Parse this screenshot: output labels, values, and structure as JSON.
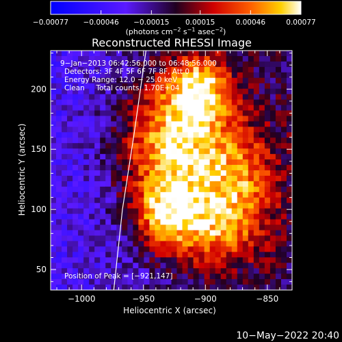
{
  "chart_data": {
    "type": "heatmap",
    "title": "Reconstructed RHESSI Image",
    "xlabel": "Heliocentric X (arcsec)",
    "ylabel": "Heliocentric Y (arcsec)",
    "xlim": [
      -1025,
      -830
    ],
    "ylim": [
      33,
      232
    ],
    "x_ticks": [
      -1000,
      -950,
      -900,
      -850
    ],
    "x_tick_labels": [
      "−1000",
      "−950",
      "−900",
      "−850"
    ],
    "y_ticks": [
      50,
      100,
      150,
      200
    ],
    "y_tick_labels": [
      "50",
      "100",
      "150",
      "200"
    ],
    "colorbar": {
      "ticks": [
        -0.00077,
        -0.00046,
        -0.00015,
        0.00015,
        0.00046,
        0.00077
      ],
      "tick_labels": [
        "−0.00077",
        "−0.00046",
        "−0.00015",
        "0.00015",
        "0.00046",
        "0.00077"
      ],
      "range": [
        -0.00077,
        0.00077
      ],
      "units_prefix": "(photons cm",
      "units_sup1": "−2",
      "units_mid": " s",
      "units_sup2": "−1",
      "units_mid2": " asec",
      "units_sup3": "−2",
      "units_suffix": ")"
    },
    "annotations": [
      "9−Jan−2013 06:42:56.000 to 06:48:56.000",
      "Detectors: 3F 4F 5F 6F 7F 8F, Att 0",
      "Energy Range: 12.0 − 25.0 keV",
      "Clean     Total counts: 1.70E+04"
    ],
    "peak_label": "Position of Peak = [−921,147]",
    "peak": [
      -921,
      147
    ],
    "limb_curve": [
      [
        -974,
        33
      ],
      [
        -967,
        100
      ],
      [
        -958,
        160
      ],
      [
        -948,
        232
      ]
    ],
    "sources": [
      {
        "x": -925,
        "y": 150,
        "sx": 30,
        "sy": 40,
        "amp": 0.0009
      },
      {
        "x": -905,
        "y": 200,
        "sx": 18,
        "sy": 22,
        "amp": 0.0007
      },
      {
        "x": -895,
        "y": 85,
        "sx": 28,
        "sy": 25,
        "amp": 0.0006
      },
      {
        "x": -870,
        "y": 130,
        "sx": 20,
        "sy": 30,
        "amp": 0.00045
      },
      {
        "x": -935,
        "y": 95,
        "sx": 15,
        "sy": 18,
        "amp": 0.0005
      }
    ],
    "colors": {
      "low": "#0000ff",
      "mid_low": "#6020ff",
      "mid": "#ff0000",
      "high": "#ff8000",
      "top": "#ffffff"
    }
  },
  "footer": {
    "timestamp": "10−May−2022 20:40"
  }
}
